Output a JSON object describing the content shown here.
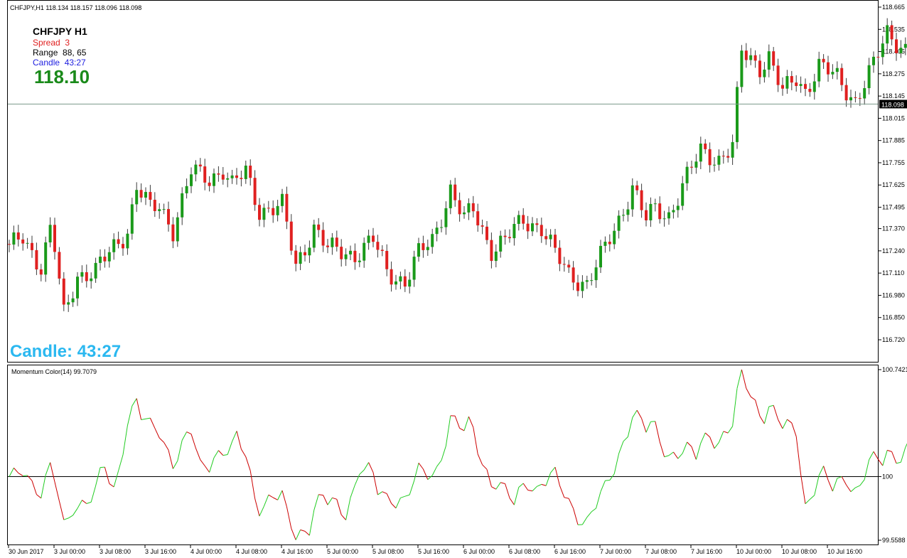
{
  "chart_data": [
    {
      "type": "candlestick",
      "header": "CHFJPY,H1  118.134 118.157 118.096 118.098",
      "symbol_label": "CHFJPY   H1",
      "spread": {
        "label": "Spread",
        "value": "3"
      },
      "range": {
        "label": "Range",
        "value": "88, 65"
      },
      "candle_timer": {
        "label": "Candle",
        "value": "43:27"
      },
      "price_big": "118.10",
      "big_timer_text": "Candle:  43:27",
      "current_price_label": "118.098",
      "current_price": 118.098,
      "ylim": [
        116.72,
        118.665
      ],
      "y_ticks": [
        "118.665",
        "118.535",
        "118.405",
        "118.275",
        "118.145",
        "118.015",
        "117.885",
        "117.755",
        "117.625",
        "117.495",
        "117.370",
        "117.240",
        "117.110",
        "116.980",
        "116.850",
        "116.720"
      ],
      "grid": false,
      "colors": {
        "up": "#1a9a1a",
        "down": "#e02020",
        "wick": "#3a3a3a",
        "price_line": "#7a9a8a"
      }
    },
    {
      "type": "line",
      "label": "Momentum Color(14) 99.7079",
      "current_value": 99.7079,
      "ylim": [
        99.5588,
        100.7421
      ],
      "y_ticks": [
        "100.7421",
        "100",
        "99.5588"
      ],
      "level": 100,
      "level_label": "100",
      "colors": {
        "rising": "#22cc22",
        "falling": "#cc0000"
      }
    }
  ],
  "x_axis_labels": [
    "30 Jun 2017",
    "3 Jul 00:00",
    "3 Jul 08:00",
    "3 Jul 16:00",
    "4 Jul 00:00",
    "4 Jul 08:00",
    "4 Jul 16:00",
    "5 Jul 00:00",
    "5 Jul 08:00",
    "5 Jul 16:00",
    "6 Jul 00:00",
    "6 Jul 08:00",
    "6 Jul 16:00",
    "7 Jul 00:00",
    "7 Jul 08:00",
    "7 Jul 16:00",
    "10 Jul 00:00",
    "10 Jul 08:00",
    "10 Jul 16:00"
  ]
}
